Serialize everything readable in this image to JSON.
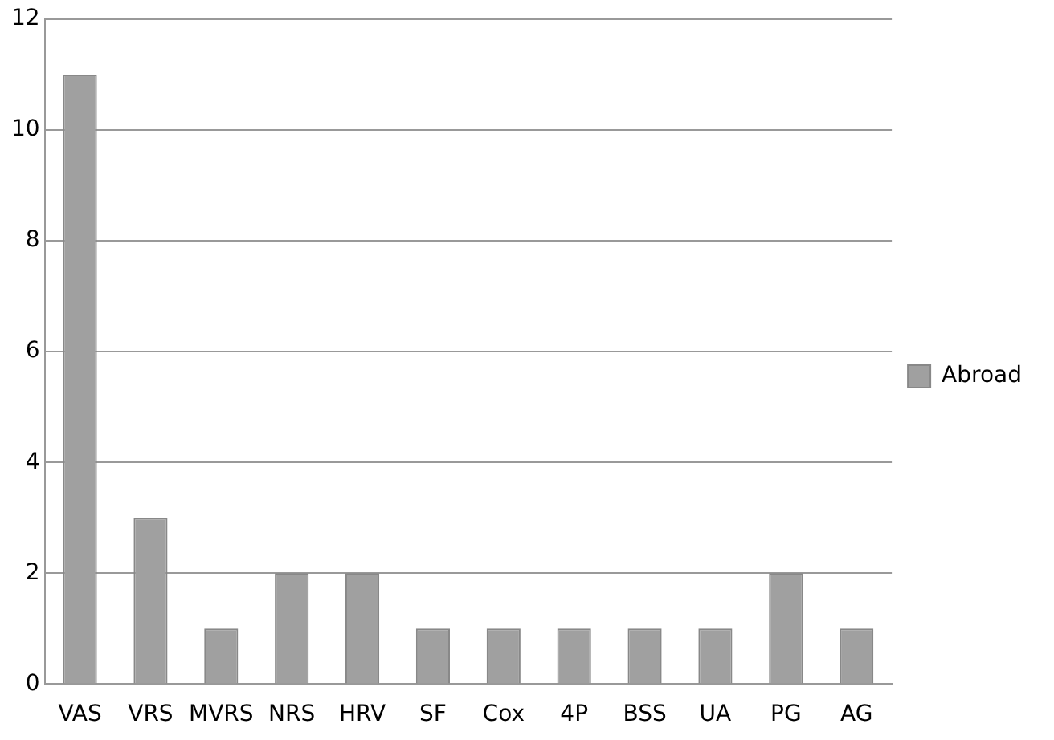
{
  "chart_data": {
    "type": "bar",
    "categories": [
      "VAS",
      "VRS",
      "MVRS",
      "NRS",
      "HRV",
      "SF",
      "Cox",
      "4P",
      "BSS",
      "UA",
      "PG",
      "AG"
    ],
    "series": [
      {
        "name": "Abroad",
        "color": "#a0a0a0",
        "values": [
          11,
          3,
          1,
          2,
          2,
          1,
          1,
          1,
          1,
          1,
          2,
          1
        ]
      }
    ],
    "ylim": [
      0,
      12
    ],
    "yticks": [
      0,
      2,
      4,
      6,
      8,
      10,
      12
    ],
    "grid": "y",
    "legend": "right"
  }
}
